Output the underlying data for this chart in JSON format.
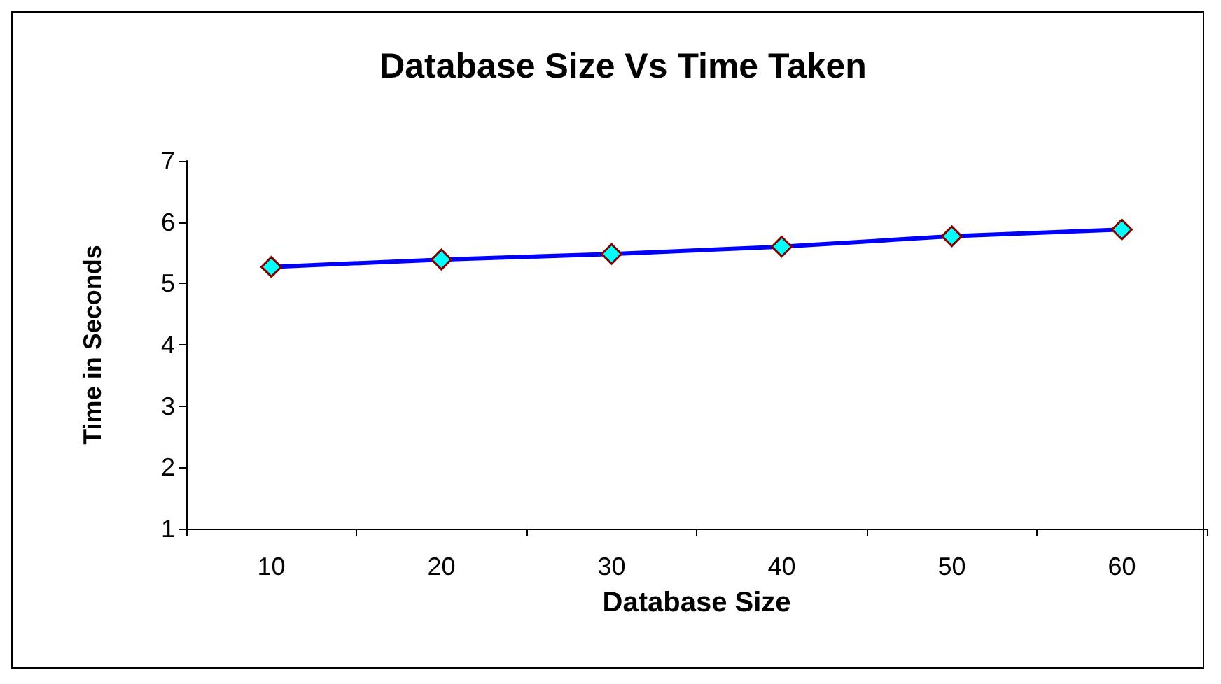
{
  "chart_data": {
    "type": "line",
    "title": "Database Size Vs Time Taken",
    "xlabel": "Database Size",
    "ylabel": "Time in Seconds",
    "categories": [
      "10",
      "20",
      "30",
      "40",
      "50",
      "60"
    ],
    "series": [
      {
        "color": "#0000ff",
        "values": [
          5.27,
          5.39,
          5.48,
          5.6,
          5.77,
          5.88
        ]
      }
    ],
    "ylim": [
      1,
      7
    ],
    "yticks": [
      1,
      2,
      3,
      4,
      5,
      6,
      7
    ],
    "marker": "diamond",
    "grid": false
  }
}
